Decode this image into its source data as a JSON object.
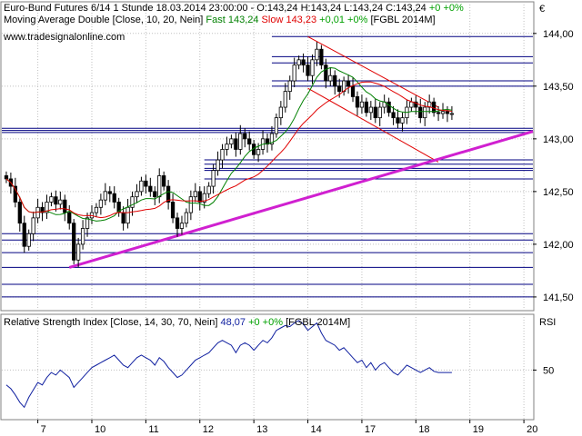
{
  "header": {
    "title_prefix": "Euro-Bund Futures 6/14 1 Stunde",
    "ohlc": "18.03.2014 23:00:00 - O:143,24 H:143,24 L:143,24 C:143,24",
    "change": "+0 +0%",
    "ma_label": "Moving Average Double [Close, 10, 20, Nein]",
    "fast_label": "Fast 143,24",
    "slow_label": "Slow 143,23",
    "ma_change": "+0,01 +0%",
    "symbol": "[FGBL 2014M]",
    "website": "www.tradesignalonline.com",
    "currency": "€"
  },
  "rsi_header": {
    "label": "Relative Strength Index [Close, 14, 30, 70, Nein]",
    "value": "48,07",
    "change": "+0 +0%",
    "symbol": "[FGBL 2014M]",
    "panel_label": "RSI"
  },
  "colors": {
    "up_candle": "#ffffff",
    "down_candle": "#000000",
    "fast_ma": "#008000",
    "slow_ma": "#e00000",
    "channel": "#e00000",
    "trendline": "#d020d0",
    "hlines": "#000080",
    "rsi_line": "#1020a0",
    "green_text": "#00a000",
    "red_text": "#e00000"
  },
  "chart_data": [
    {
      "type": "candlestick",
      "title": "Euro-Bund Futures 6/14 1 Stunde",
      "y_ticks": [
        "144,00",
        "143,50",
        "143,00",
        "142,50",
        "142,00",
        "141,50"
      ],
      "y_tick_values": [
        144.0,
        143.5,
        143.0,
        142.5,
        142.0,
        141.5
      ],
      "ylim": [
        141.37,
        144.3
      ],
      "x_ticks": [
        "7",
        "10",
        "11",
        "12",
        "13",
        "14",
        "17",
        "18",
        "19",
        "20"
      ],
      "x_tick_values": [
        8,
        20,
        32,
        44,
        56,
        68,
        80,
        92,
        104,
        116
      ],
      "xlim": [
        0,
        118
      ],
      "close": [
        142.62,
        142.55,
        142.4,
        142.2,
        141.98,
        142.1,
        142.25,
        142.35,
        142.3,
        142.4,
        142.45,
        142.38,
        142.42,
        142.3,
        142.2,
        141.85,
        142.0,
        142.15,
        142.25,
        142.3,
        142.35,
        142.42,
        142.5,
        142.48,
        142.4,
        142.3,
        142.2,
        142.35,
        142.45,
        142.5,
        142.6,
        142.55,
        142.5,
        142.45,
        142.65,
        142.55,
        142.4,
        142.25,
        142.15,
        142.2,
        142.3,
        142.45,
        142.5,
        142.4,
        142.48,
        142.55,
        142.7,
        142.8,
        142.9,
        142.95,
        143.0,
        142.9,
        143.05,
        143.0,
        142.95,
        142.85,
        142.9,
        143.0,
        142.95,
        143.05,
        143.2,
        143.3,
        143.45,
        143.55,
        143.7,
        143.75,
        143.7,
        143.6,
        143.75,
        143.85,
        143.7,
        143.55,
        143.6,
        143.5,
        143.45,
        143.55,
        143.5,
        143.4,
        143.3,
        143.35,
        143.25,
        143.3,
        143.2,
        143.3,
        143.35,
        143.25,
        143.2,
        143.15,
        143.2,
        143.3,
        143.35,
        143.3,
        143.2,
        143.3,
        143.35,
        143.25,
        143.24,
        143.26,
        143.24,
        143.24
      ],
      "fast_ma_name": "Fast",
      "slow_ma_name": "Slow",
      "horizontal_levels": [
        143.97,
        143.78,
        143.72,
        143.55,
        143.5,
        143.1,
        143.08,
        143.06,
        142.8,
        142.76,
        142.72,
        142.7,
        142.62,
        142.1,
        142.04,
        141.92,
        141.78,
        141.62,
        141.5
      ],
      "support_trendline": [
        {
          "x": 15,
          "y": 141.78
        },
        {
          "x": 118,
          "y": 143.07
        }
      ],
      "channel_upper": [
        {
          "x": 68,
          "y": 143.97
        },
        {
          "x": 97,
          "y": 143.3
        }
      ],
      "channel_lower": [
        {
          "x": 68,
          "y": 143.48
        },
        {
          "x": 97,
          "y": 142.78
        }
      ]
    },
    {
      "type": "line",
      "title": "Relative Strength Index",
      "y_ticks": [
        "50"
      ],
      "y_tick_values": [
        50
      ],
      "ylim": [
        10,
        95
      ],
      "series": [
        {
          "name": "Relative Strength Index",
          "values": [
            38,
            35,
            30,
            24,
            20,
            28,
            34,
            40,
            38,
            44,
            48,
            46,
            50,
            47,
            44,
            36,
            40,
            44,
            48,
            52,
            54,
            56,
            58,
            60,
            62,
            58,
            54,
            52,
            56,
            60,
            62,
            60,
            58,
            54,
            60,
            57,
            52,
            48,
            44,
            46,
            50,
            54,
            58,
            60,
            62,
            64,
            68,
            72,
            74,
            72,
            70,
            64,
            70,
            72,
            70,
            66,
            70,
            74,
            72,
            76,
            82,
            84,
            86,
            85,
            88,
            90,
            87,
            82,
            85,
            88,
            80,
            74,
            72,
            70,
            66,
            68,
            64,
            60,
            56,
            58,
            52,
            56,
            50,
            54,
            56,
            52,
            48,
            46,
            50,
            54,
            52,
            50,
            48,
            50,
            52,
            49,
            48,
            48,
            48,
            48
          ]
        }
      ]
    }
  ]
}
